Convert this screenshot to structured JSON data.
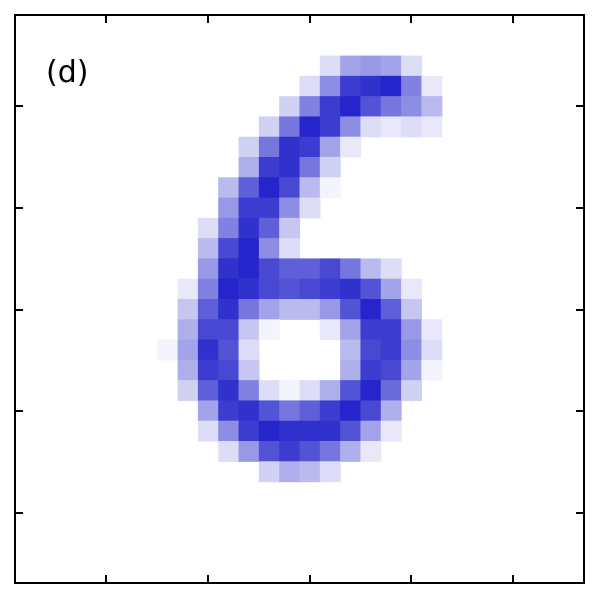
{
  "panel_label": "(d)",
  "chart_data": {
    "type": "heatmap",
    "title": "",
    "xlabel": "",
    "ylabel": "",
    "tick_labels_shown": false,
    "grid": false,
    "colormap": {
      "low": "#ffffff",
      "high": "#1a1ac8"
    },
    "value_range": [
      0,
      1
    ],
    "rows": 28,
    "cols": 28,
    "origin": "top-left",
    "cells": [
      [
        2,
        15,
        0.15
      ],
      [
        2,
        16,
        0.4
      ],
      [
        2,
        17,
        0.45
      ],
      [
        2,
        18,
        0.4
      ],
      [
        2,
        19,
        0.15
      ],
      [
        3,
        14,
        0.15
      ],
      [
        3,
        15,
        0.5
      ],
      [
        3,
        16,
        0.85
      ],
      [
        3,
        17,
        0.9
      ],
      [
        3,
        18,
        0.95
      ],
      [
        3,
        19,
        0.55
      ],
      [
        3,
        20,
        0.1
      ],
      [
        4,
        13,
        0.2
      ],
      [
        4,
        14,
        0.55
      ],
      [
        4,
        15,
        0.85
      ],
      [
        4,
        16,
        0.95
      ],
      [
        4,
        17,
        0.75
      ],
      [
        4,
        18,
        0.6
      ],
      [
        4,
        19,
        0.5
      ],
      [
        4,
        20,
        0.3
      ],
      [
        5,
        12,
        0.2
      ],
      [
        5,
        13,
        0.6
      ],
      [
        5,
        14,
        0.95
      ],
      [
        5,
        15,
        0.85
      ],
      [
        5,
        16,
        0.5
      ],
      [
        5,
        17,
        0.15
      ],
      [
        5,
        18,
        0.1
      ],
      [
        5,
        19,
        0.15
      ],
      [
        5,
        20,
        0.1
      ],
      [
        6,
        11,
        0.2
      ],
      [
        6,
        12,
        0.6
      ],
      [
        6,
        13,
        0.9
      ],
      [
        6,
        14,
        0.85
      ],
      [
        6,
        15,
        0.4
      ],
      [
        6,
        16,
        0.1
      ],
      [
        7,
        11,
        0.35
      ],
      [
        7,
        12,
        0.85
      ],
      [
        7,
        13,
        0.9
      ],
      [
        7,
        14,
        0.6
      ],
      [
        7,
        15,
        0.2
      ],
      [
        8,
        10,
        0.3
      ],
      [
        8,
        11,
        0.7
      ],
      [
        8,
        12,
        0.95
      ],
      [
        8,
        13,
        0.8
      ],
      [
        8,
        14,
        0.3
      ],
      [
        8,
        15,
        0.05
      ],
      [
        9,
        10,
        0.45
      ],
      [
        9,
        11,
        0.85
      ],
      [
        9,
        12,
        0.85
      ],
      [
        9,
        13,
        0.5
      ],
      [
        9,
        14,
        0.15
      ],
      [
        10,
        9,
        0.15
      ],
      [
        10,
        10,
        0.55
      ],
      [
        10,
        11,
        0.9
      ],
      [
        10,
        12,
        0.7
      ],
      [
        10,
        13,
        0.25
      ],
      [
        11,
        9,
        0.3
      ],
      [
        11,
        10,
        0.8
      ],
      [
        11,
        11,
        0.95
      ],
      [
        11,
        12,
        0.5
      ],
      [
        11,
        13,
        0.15
      ],
      [
        12,
        9,
        0.45
      ],
      [
        12,
        10,
        0.9
      ],
      [
        12,
        11,
        0.95
      ],
      [
        12,
        12,
        0.8
      ],
      [
        12,
        13,
        0.7
      ],
      [
        12,
        14,
        0.7
      ],
      [
        12,
        15,
        0.8
      ],
      [
        12,
        16,
        0.6
      ],
      [
        12,
        17,
        0.3
      ],
      [
        12,
        18,
        0.15
      ],
      [
        13,
        8,
        0.1
      ],
      [
        13,
        9,
        0.55
      ],
      [
        13,
        10,
        0.95
      ],
      [
        13,
        11,
        0.9
      ],
      [
        13,
        12,
        0.8
      ],
      [
        13,
        13,
        0.75
      ],
      [
        13,
        14,
        0.8
      ],
      [
        13,
        15,
        0.85
      ],
      [
        13,
        16,
        0.9
      ],
      [
        13,
        17,
        0.75
      ],
      [
        13,
        18,
        0.4
      ],
      [
        13,
        19,
        0.1
      ],
      [
        14,
        8,
        0.25
      ],
      [
        14,
        9,
        0.7
      ],
      [
        14,
        10,
        0.9
      ],
      [
        14,
        11,
        0.6
      ],
      [
        14,
        12,
        0.4
      ],
      [
        14,
        13,
        0.3
      ],
      [
        14,
        14,
        0.3
      ],
      [
        14,
        15,
        0.45
      ],
      [
        14,
        16,
        0.75
      ],
      [
        14,
        17,
        0.95
      ],
      [
        14,
        18,
        0.7
      ],
      [
        14,
        19,
        0.25
      ],
      [
        15,
        8,
        0.35
      ],
      [
        15,
        9,
        0.8
      ],
      [
        15,
        10,
        0.8
      ],
      [
        15,
        11,
        0.25
      ],
      [
        15,
        12,
        0.05
      ],
      [
        15,
        15,
        0.1
      ],
      [
        15,
        16,
        0.4
      ],
      [
        15,
        17,
        0.85
      ],
      [
        15,
        18,
        0.85
      ],
      [
        15,
        19,
        0.45
      ],
      [
        15,
        20,
        0.1
      ],
      [
        16,
        7,
        0.05
      ],
      [
        16,
        8,
        0.4
      ],
      [
        16,
        9,
        0.9
      ],
      [
        16,
        10,
        0.75
      ],
      [
        16,
        11,
        0.15
      ],
      [
        16,
        16,
        0.3
      ],
      [
        16,
        17,
        0.8
      ],
      [
        16,
        18,
        0.85
      ],
      [
        16,
        19,
        0.5
      ],
      [
        16,
        20,
        0.15
      ],
      [
        17,
        8,
        0.35
      ],
      [
        17,
        9,
        0.85
      ],
      [
        17,
        10,
        0.8
      ],
      [
        17,
        11,
        0.25
      ],
      [
        17,
        16,
        0.35
      ],
      [
        17,
        17,
        0.85
      ],
      [
        17,
        18,
        0.8
      ],
      [
        17,
        19,
        0.4
      ],
      [
        17,
        20,
        0.05
      ],
      [
        18,
        8,
        0.2
      ],
      [
        18,
        9,
        0.7
      ],
      [
        18,
        10,
        0.9
      ],
      [
        18,
        11,
        0.55
      ],
      [
        18,
        12,
        0.15
      ],
      [
        18,
        13,
        0.05
      ],
      [
        18,
        14,
        0.15
      ],
      [
        18,
        15,
        0.35
      ],
      [
        18,
        16,
        0.75
      ],
      [
        18,
        17,
        0.95
      ],
      [
        18,
        18,
        0.65
      ],
      [
        18,
        19,
        0.2
      ],
      [
        19,
        9,
        0.4
      ],
      [
        19,
        10,
        0.85
      ],
      [
        19,
        11,
        0.9
      ],
      [
        19,
        12,
        0.75
      ],
      [
        19,
        13,
        0.6
      ],
      [
        19,
        14,
        0.7
      ],
      [
        19,
        15,
        0.85
      ],
      [
        19,
        16,
        0.95
      ],
      [
        19,
        17,
        0.8
      ],
      [
        19,
        18,
        0.35
      ],
      [
        20,
        9,
        0.15
      ],
      [
        20,
        10,
        0.5
      ],
      [
        20,
        11,
        0.85
      ],
      [
        20,
        12,
        0.95
      ],
      [
        20,
        13,
        0.9
      ],
      [
        20,
        14,
        0.9
      ],
      [
        20,
        15,
        0.9
      ],
      [
        20,
        16,
        0.75
      ],
      [
        20,
        17,
        0.4
      ],
      [
        20,
        18,
        0.1
      ],
      [
        21,
        10,
        0.15
      ],
      [
        21,
        11,
        0.45
      ],
      [
        21,
        12,
        0.75
      ],
      [
        21,
        13,
        0.85
      ],
      [
        21,
        14,
        0.75
      ],
      [
        21,
        15,
        0.6
      ],
      [
        21,
        16,
        0.35
      ],
      [
        21,
        17,
        0.1
      ],
      [
        22,
        12,
        0.2
      ],
      [
        22,
        13,
        0.35
      ],
      [
        22,
        14,
        0.3
      ],
      [
        22,
        15,
        0.15
      ]
    ]
  }
}
